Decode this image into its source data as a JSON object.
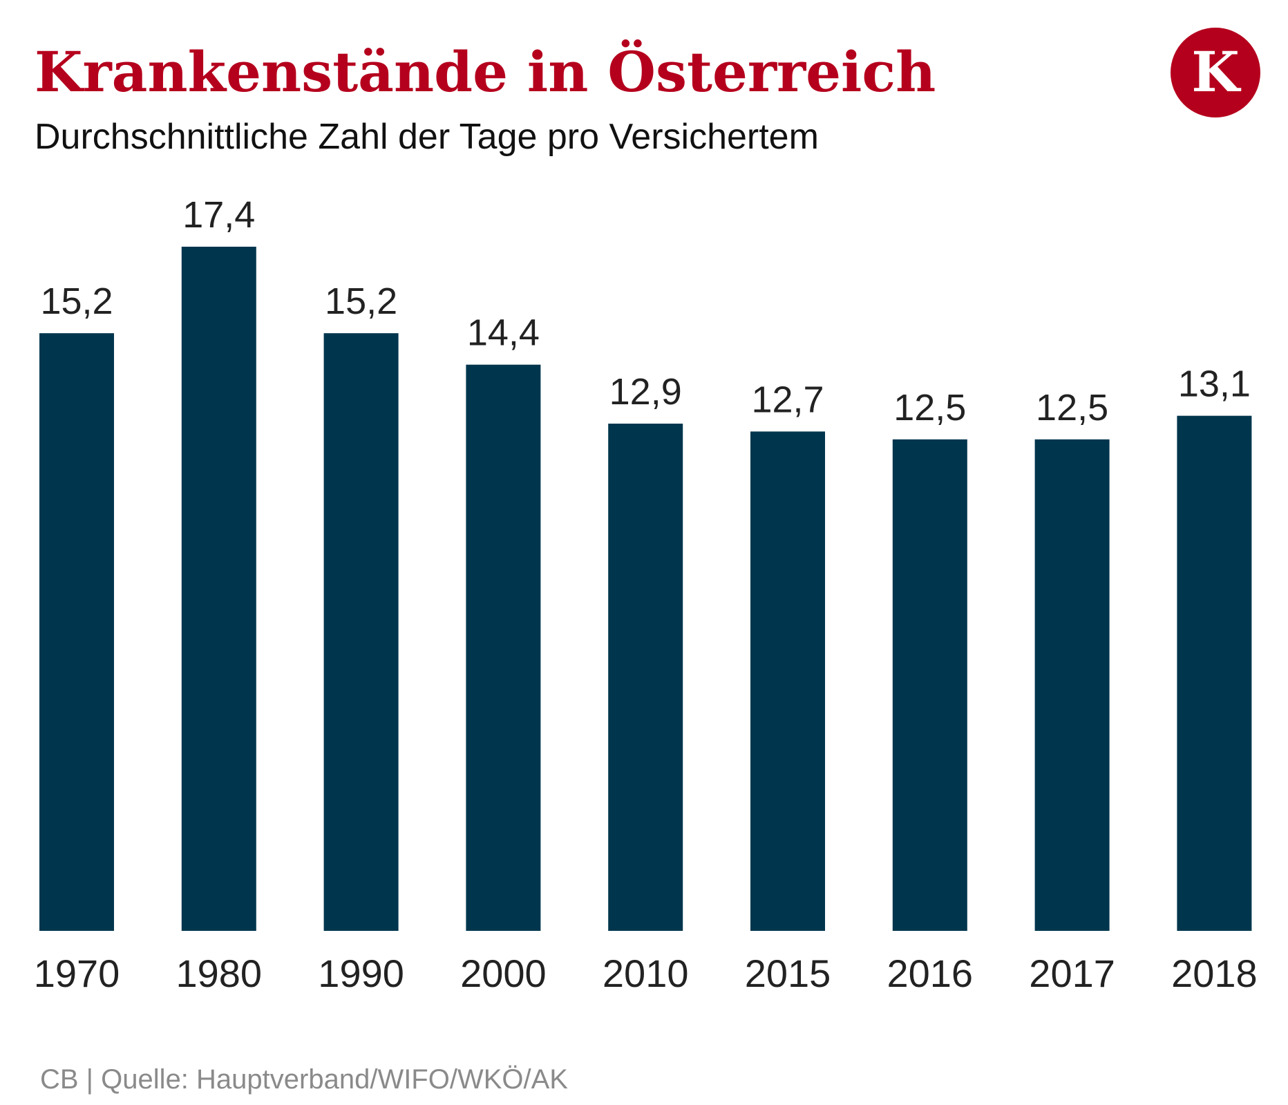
{
  "chart_data": {
    "type": "bar",
    "title": "Krankenstände in Österreich",
    "subtitle": "Durchschnittliche Zahl der Tage pro Versichertem",
    "categories": [
      "1970",
      "1980",
      "1990",
      "2000",
      "2010",
      "2015",
      "2016",
      "2017",
      "2018"
    ],
    "values": [
      15.2,
      17.4,
      15.2,
      14.4,
      12.9,
      12.7,
      12.5,
      12.5,
      13.1
    ],
    "value_labels": [
      "15,2",
      "17,4",
      "15,2",
      "14,4",
      "12,9",
      "12,7",
      "12,5",
      "12,5",
      "13,1"
    ],
    "ylim": [
      0,
      17.4
    ],
    "grid": false,
    "y_axis_shown": false,
    "bar_color": "#00364d",
    "title_color": "#b5001d",
    "source": "CB | Quelle: Hauptverband/WIFO/WKÖ/AK"
  },
  "logo": {
    "letter": "K",
    "color": "#b5001d"
  }
}
